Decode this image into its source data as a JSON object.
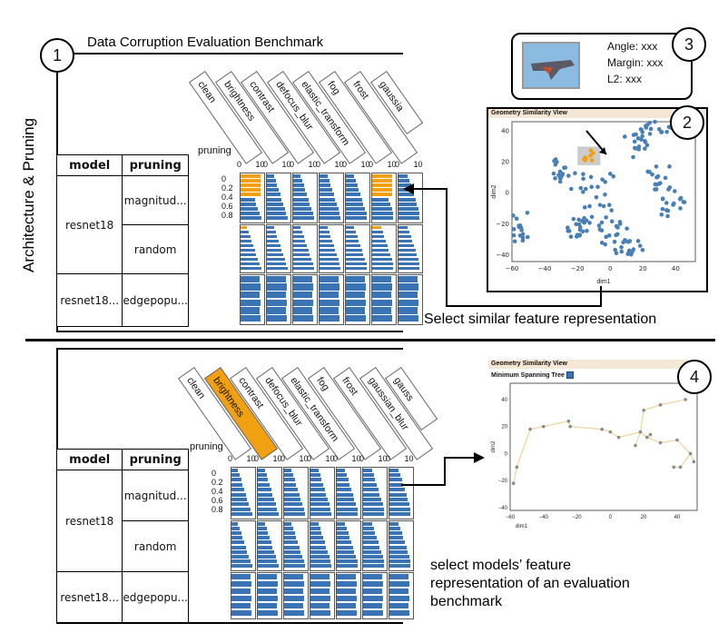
{
  "title": "Data Corruption Evaluation Benchmark",
  "side_label": "Architecture & Pruning",
  "circles": [
    "1",
    "2",
    "3",
    "4"
  ],
  "tooltip": {
    "angle": "Angle: xxx",
    "margin": "Margin: xxx",
    "l2": "L2: xxx"
  },
  "caption_top": "Select similar feature representation",
  "caption_bottom_line1": "select models’ feature",
  "caption_bottom_line2": "representation of an evaluation",
  "caption_bottom_line3": "benchmark",
  "table": {
    "col_model": "model",
    "col_pruning": "pruning",
    "rows": [
      {
        "model": "resnet18",
        "pruning": "magnitud..."
      },
      {
        "model": "",
        "pruning": "random"
      },
      {
        "model": "resnet18...",
        "pruning": "edgepopu..."
      }
    ]
  },
  "corruptions_top": [
    "clean",
    "brightness",
    "contrast",
    "defocus_blur",
    "elastic_transform",
    "fog",
    "frost",
    "gaussia"
  ],
  "corruptions_bottom": [
    "clean",
    "brightness",
    "contrast",
    "defocus_blur",
    "elastic_transform",
    "fog",
    "frost",
    "gaussian_blur",
    "gauss"
  ],
  "pruning_header": "pruning",
  "y_ticks": [
    "0",
    "0.2",
    "0.4",
    "0.6",
    "0.8"
  ],
  "x_tick_pairs": [
    "0",
    "10"
  ],
  "sim_view_title": "Geometry Similarity View",
  "mst_label": "Minimum Spanning Tree",
  "sim_axis": {
    "xlabel": "dim1",
    "ylabel": "dim2"
  },
  "sim_x_ticks": [
    "−60",
    "−40",
    "−20",
    "0",
    "20",
    "40"
  ],
  "sim_y_ticks": [
    "40",
    "20",
    "0",
    "−20",
    "−40"
  ],
  "colors": {
    "orange": "#f0a010",
    "blue": "#3a74b4",
    "dot": "#4a7fb5",
    "grey_dot": "#8a8a8a",
    "tree_line": "#f0d9a8"
  }
}
